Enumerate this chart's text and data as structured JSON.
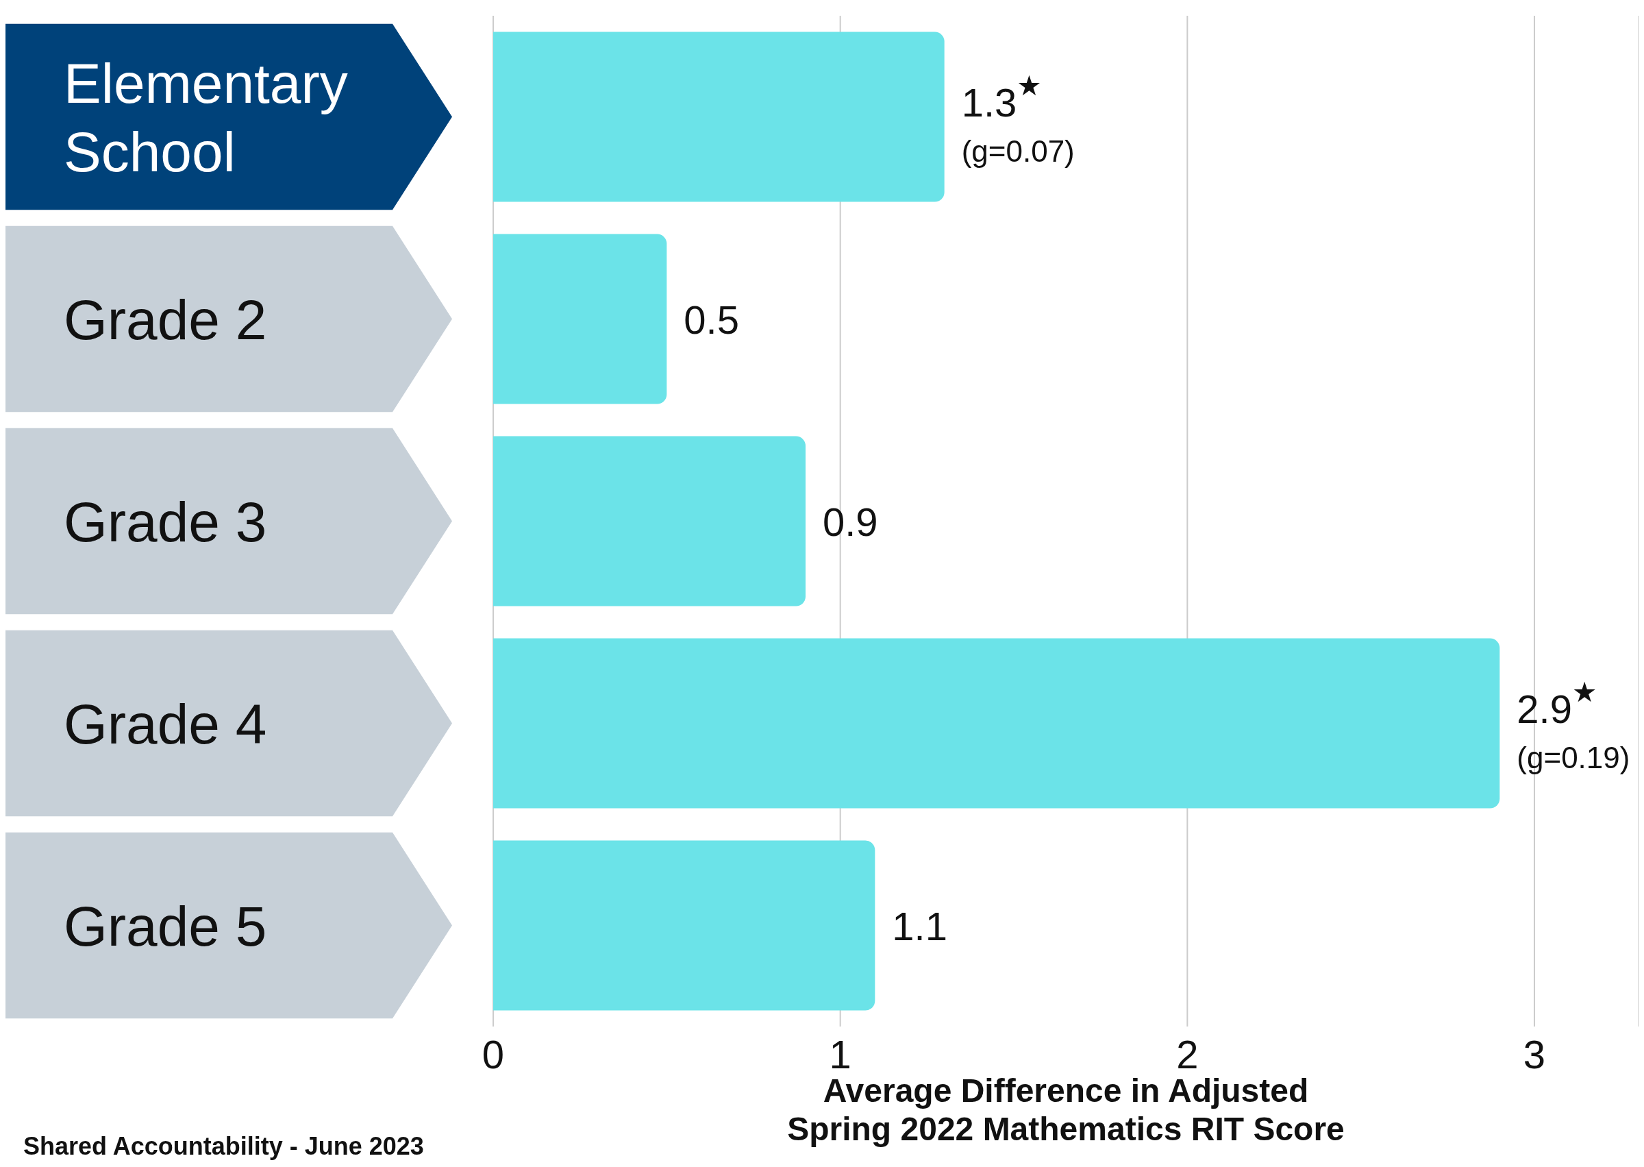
{
  "chart_data": {
    "type": "bar",
    "orientation": "horizontal",
    "categories": [
      "Elementary School",
      "Grade 2",
      "Grade 3",
      "Grade 4",
      "Grade 5"
    ],
    "values": [
      1.3,
      0.5,
      0.9,
      2.9,
      1.1
    ],
    "value_labels": [
      "1.3$^{★}$",
      "0.5",
      "0.9",
      "2.9$^{★}$",
      "1.1"
    ],
    "color": "#6be3e8",
    "xlabel": "Average Difference in Adjusted Spring 2022 Mathematics RIT Score",
    "xlim": [
      0,
      3.3
    ],
    "xticks": [
      0,
      1,
      2,
      3
    ],
    "grid": "x",
    "annotations": [
      {
        "text": "(g=0.07)",
        "x": 1.3,
        "y": "Elementary School"
      },
      {
        "text": "(g=0.19)",
        "x": 2.9,
        "y": "Grade 4"
      },
      "Shared Accountability - June 2023"
    ]
  }
}
